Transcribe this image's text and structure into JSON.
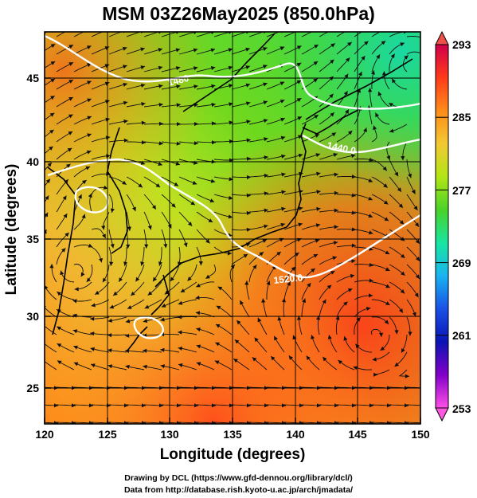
{
  "title": "MSM 03Z26May2025 (850.0hPa)",
  "axes": {
    "xlabel": "Longitude (degrees)",
    "ylabel": "Latitude  (degrees)",
    "x_ticks": [
      "120",
      "125",
      "130",
      "135",
      "140",
      "145",
      "150"
    ],
    "y_ticks": [
      "45",
      "40",
      "35",
      "30",
      "25"
    ]
  },
  "colorbar": {
    "labels": [
      "293",
      "285",
      "277",
      "269",
      "261",
      "253"
    ],
    "gradient": [
      "#d0004a",
      "#ff3a1a",
      "#ff8c1a",
      "#f2c832",
      "#b2e614",
      "#4ad22a",
      "#18e6a0",
      "#1ab4f0",
      "#1a50e6",
      "#0a14b4",
      "#8200c8",
      "#ff50e6"
    ]
  },
  "contour_labels": [
    "1480",
    "1440.0",
    "1520.0"
  ],
  "credits": {
    "line1": "Drawing by DCL (https://www.gfd-dennou.org/library/dcl/)",
    "line2": "Data from http://database.rish.kyoto-u.ac.jp/arch/jmadata/"
  }
}
